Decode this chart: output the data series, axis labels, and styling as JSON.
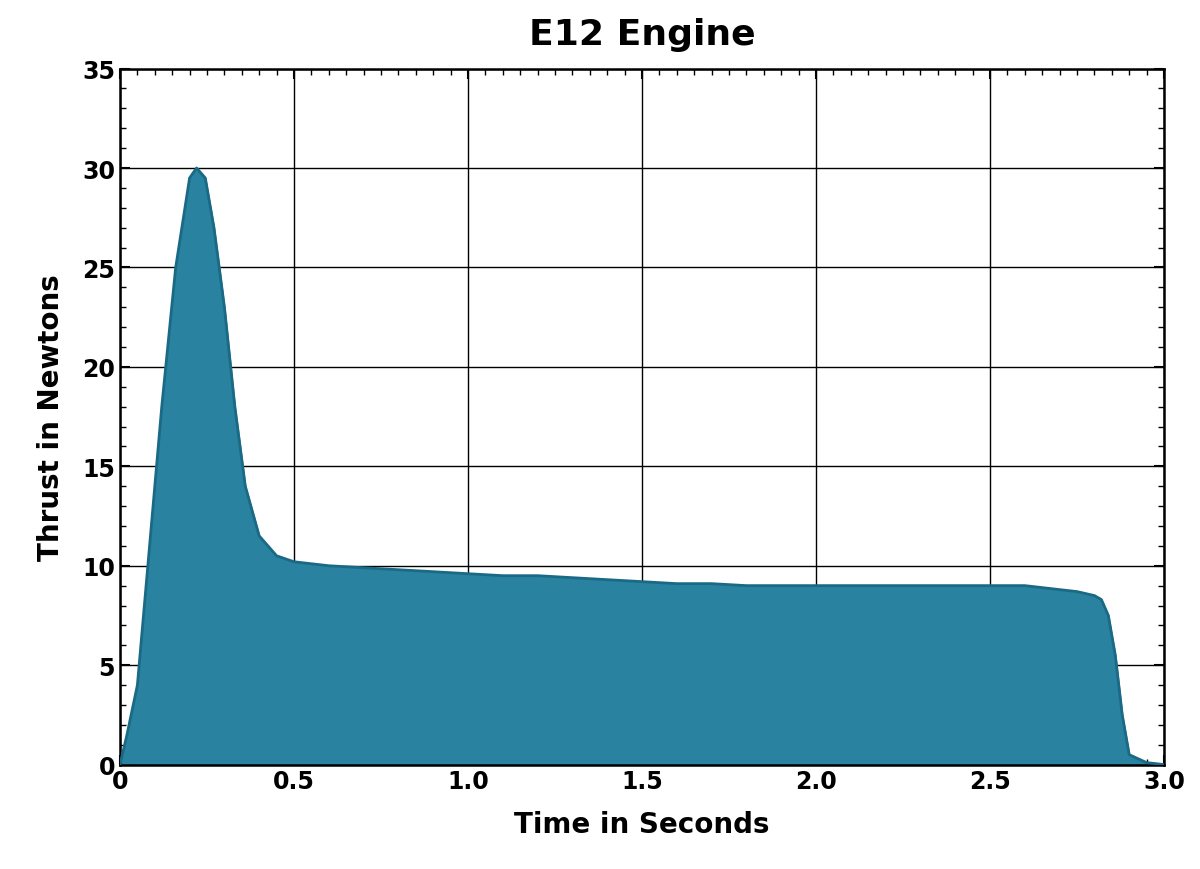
{
  "title": "E12 Engine",
  "xlabel": "Time in Seconds",
  "ylabel": "Thrust in Newtons",
  "xlim": [
    0,
    3.0
  ],
  "ylim": [
    0,
    35
  ],
  "xticks": [
    0,
    0.5,
    1.0,
    1.5,
    2.0,
    2.5,
    3.0
  ],
  "yticks": [
    0,
    5,
    10,
    15,
    20,
    25,
    30,
    35
  ],
  "fill_color": "#2882a0",
  "line_color": "#1a6a85",
  "background_color": "#ffffff",
  "thrust_curve_x": [
    0.0,
    0.02,
    0.05,
    0.08,
    0.12,
    0.16,
    0.2,
    0.22,
    0.245,
    0.27,
    0.3,
    0.33,
    0.36,
    0.4,
    0.45,
    0.5,
    0.55,
    0.6,
    0.7,
    0.8,
    0.9,
    1.0,
    1.1,
    1.2,
    1.3,
    1.4,
    1.5,
    1.6,
    1.7,
    1.8,
    1.9,
    2.0,
    2.1,
    2.2,
    2.25,
    2.27,
    2.28,
    2.285,
    2.29,
    2.3,
    2.32,
    2.35,
    2.4,
    2.45,
    2.5,
    2.55,
    2.6,
    2.65,
    2.7,
    2.75,
    2.8,
    2.82,
    2.84,
    2.85,
    2.86,
    2.87,
    2.88,
    2.89,
    2.9,
    2.95,
    3.0
  ],
  "thrust_curve_y": [
    0.0,
    1.5,
    4.0,
    10.0,
    18.0,
    25.0,
    29.5,
    30.0,
    29.5,
    27.0,
    23.0,
    18.0,
    14.0,
    11.5,
    10.5,
    10.2,
    10.1,
    10.0,
    9.9,
    9.8,
    9.7,
    9.6,
    9.5,
    9.5,
    9.4,
    9.3,
    9.2,
    9.1,
    9.1,
    9.0,
    9.0,
    9.0,
    9.0,
    9.0,
    9.0,
    9.0,
    9.0,
    9.0,
    9.0,
    9.0,
    9.0,
    9.0,
    9.0,
    9.0,
    9.0,
    9.0,
    9.0,
    8.9,
    8.8,
    8.7,
    8.5,
    8.3,
    7.5,
    6.5,
    5.5,
    4.0,
    2.5,
    1.5,
    0.5,
    0.1,
    0.0
  ],
  "title_fontsize": 26,
  "label_fontsize": 20,
  "tick_fontsize": 17,
  "line_width": 2.0
}
